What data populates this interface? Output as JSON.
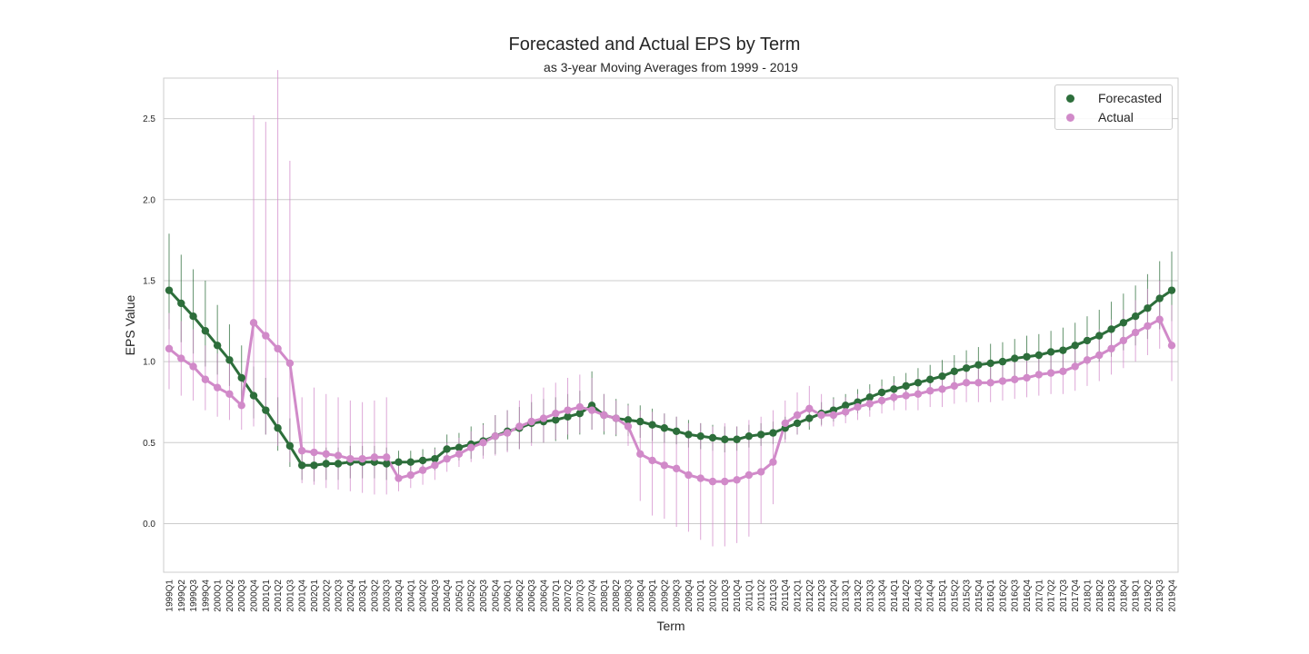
{
  "header": {
    "title": "Forecasted and Actual EPS by Term",
    "subtitle": "as 3-year Moving Averages from 1999 - 2019"
  },
  "legend": {
    "items": [
      {
        "label": "Forecasted",
        "color": "#2d6e3b"
      },
      {
        "label": "Actual",
        "color": "#d18ac9"
      }
    ],
    "placement": "top-right"
  },
  "chart_data": {
    "type": "line",
    "title": "Forecasted and Actual EPS by Term",
    "subtitle": "as 3-year Moving Averages from 1999 - 2019",
    "xlabel": "Term",
    "ylabel": "EPS Value",
    "ylim": [
      -0.3,
      2.75
    ],
    "yticks": [
      "0.0",
      "0.5",
      "1.0",
      "1.5",
      "2.0",
      "2.5"
    ],
    "grid": "horizontal",
    "categories": [
      "1999Q1",
      "1999Q2",
      "1999Q3",
      "1999Q4",
      "2000Q1",
      "2000Q2",
      "2000Q3",
      "2000Q4",
      "2001Q1",
      "2001Q2",
      "2001Q3",
      "2001Q4",
      "2002Q1",
      "2002Q2",
      "2002Q3",
      "2002Q4",
      "2003Q1",
      "2003Q2",
      "2003Q3",
      "2003Q4",
      "2004Q1",
      "2004Q2",
      "2004Q3",
      "2004Q4",
      "2005Q1",
      "2005Q2",
      "2005Q3",
      "2005Q4",
      "2006Q1",
      "2006Q2",
      "2006Q3",
      "2006Q4",
      "2007Q1",
      "2007Q2",
      "2007Q3",
      "2007Q4",
      "2008Q1",
      "2008Q2",
      "2008Q3",
      "2008Q4",
      "2009Q1",
      "2009Q2",
      "2009Q3",
      "2009Q4",
      "2010Q1",
      "2010Q2",
      "2010Q3",
      "2010Q4",
      "2011Q1",
      "2011Q2",
      "2011Q3",
      "2011Q4",
      "2012Q1",
      "2012Q2",
      "2012Q3",
      "2012Q4",
      "2013Q1",
      "2013Q2",
      "2013Q3",
      "2013Q4",
      "2014Q1",
      "2014Q2",
      "2014Q3",
      "2014Q4",
      "2015Q1",
      "2015Q2",
      "2015Q3",
      "2015Q4",
      "2016Q1",
      "2016Q2",
      "2016Q3",
      "2016Q4",
      "2017Q1",
      "2017Q2",
      "2017Q3",
      "2017Q4",
      "2018Q1",
      "2018Q2",
      "2018Q3",
      "2018Q4",
      "2019Q1",
      "2019Q2",
      "2019Q3",
      "2019Q4"
    ],
    "series": [
      {
        "name": "Forecasted",
        "color": "#2d6e3b",
        "values": [
          1.44,
          1.36,
          1.28,
          1.19,
          1.1,
          1.01,
          0.9,
          0.79,
          0.7,
          0.59,
          0.48,
          0.36,
          0.36,
          0.37,
          0.37,
          0.38,
          0.38,
          0.38,
          0.37,
          0.38,
          0.38,
          0.39,
          0.4,
          0.46,
          0.47,
          0.49,
          0.51,
          0.54,
          0.57,
          0.59,
          0.62,
          0.63,
          0.64,
          0.66,
          0.68,
          0.73,
          0.67,
          0.65,
          0.64,
          0.63,
          0.61,
          0.59,
          0.57,
          0.55,
          0.54,
          0.53,
          0.52,
          0.52,
          0.54,
          0.55,
          0.56,
          0.59,
          0.62,
          0.65,
          0.68,
          0.7,
          0.73,
          0.75,
          0.78,
          0.81,
          0.83,
          0.85,
          0.87,
          0.89,
          0.91,
          0.94,
          0.96,
          0.98,
          0.99,
          1.0,
          1.02,
          1.03,
          1.04,
          1.06,
          1.07,
          1.1,
          1.13,
          1.16,
          1.2,
          1.24,
          1.28,
          1.33,
          1.39,
          1.44
        ],
        "err_low": [
          1.2,
          1.12,
          1.05,
          0.97,
          0.92,
          0.85,
          0.75,
          0.65,
          0.55,
          0.45,
          0.35,
          0.27,
          0.26,
          0.27,
          0.27,
          0.28,
          0.28,
          0.28,
          0.27,
          0.3,
          0.31,
          0.32,
          0.33,
          0.38,
          0.39,
          0.4,
          0.42,
          0.43,
          0.45,
          0.46,
          0.5,
          0.5,
          0.51,
          0.52,
          0.55,
          0.58,
          0.55,
          0.54,
          0.54,
          0.53,
          0.51,
          0.5,
          0.49,
          0.47,
          0.46,
          0.45,
          0.44,
          0.45,
          0.47,
          0.48,
          0.49,
          0.52,
          0.55,
          0.58,
          0.61,
          0.63,
          0.66,
          0.68,
          0.7,
          0.73,
          0.75,
          0.77,
          0.78,
          0.8,
          0.82,
          0.84,
          0.85,
          0.87,
          0.88,
          0.89,
          0.9,
          0.91,
          0.92,
          0.93,
          0.94,
          0.96,
          0.98,
          1.0,
          1.03,
          1.07,
          1.1,
          1.14,
          1.2,
          1.25
        ],
        "err_high": [
          1.79,
          1.66,
          1.57,
          1.5,
          1.35,
          1.23,
          1.1,
          0.97,
          0.9,
          0.78,
          0.65,
          0.45,
          0.45,
          0.47,
          0.47,
          0.48,
          0.48,
          0.48,
          0.47,
          0.45,
          0.45,
          0.46,
          0.47,
          0.55,
          0.56,
          0.6,
          0.62,
          0.67,
          0.7,
          0.72,
          0.75,
          0.77,
          0.78,
          0.8,
          0.82,
          0.94,
          0.8,
          0.77,
          0.74,
          0.73,
          0.71,
          0.68,
          0.66,
          0.64,
          0.62,
          0.61,
          0.6,
          0.6,
          0.61,
          0.62,
          0.63,
          0.66,
          0.69,
          0.72,
          0.75,
          0.78,
          0.8,
          0.83,
          0.86,
          0.89,
          0.91,
          0.93,
          0.96,
          0.98,
          1.01,
          1.04,
          1.07,
          1.09,
          1.11,
          1.12,
          1.14,
          1.16,
          1.17,
          1.19,
          1.21,
          1.24,
          1.28,
          1.32,
          1.37,
          1.42,
          1.47,
          1.54,
          1.62,
          1.68
        ]
      },
      {
        "name": "Actual",
        "color": "#d18ac9",
        "values": [
          1.08,
          1.02,
          0.97,
          0.89,
          0.84,
          0.8,
          0.73,
          1.24,
          1.16,
          1.08,
          0.99,
          0.45,
          0.44,
          0.43,
          0.42,
          0.4,
          0.4,
          0.41,
          0.41,
          0.28,
          0.3,
          0.33,
          0.36,
          0.4,
          0.43,
          0.47,
          0.5,
          0.54,
          0.56,
          0.6,
          0.63,
          0.65,
          0.68,
          0.7,
          0.72,
          0.7,
          0.67,
          0.65,
          0.6,
          0.43,
          0.39,
          0.36,
          0.34,
          0.3,
          0.28,
          0.26,
          0.26,
          0.27,
          0.3,
          0.32,
          0.38,
          0.62,
          0.67,
          0.71,
          0.67,
          0.67,
          0.69,
          0.72,
          0.74,
          0.76,
          0.78,
          0.79,
          0.8,
          0.82,
          0.83,
          0.85,
          0.87,
          0.87,
          0.87,
          0.88,
          0.89,
          0.9,
          0.92,
          0.93,
          0.94,
          0.97,
          1.01,
          1.04,
          1.08,
          1.13,
          1.18,
          1.22,
          1.26,
          1.1
        ],
        "err_low": [
          0.83,
          0.79,
          0.76,
          0.7,
          0.66,
          0.64,
          0.58,
          0.6,
          0.55,
          0.48,
          0.38,
          0.25,
          0.24,
          0.22,
          0.21,
          0.2,
          0.19,
          0.18,
          0.18,
          0.2,
          0.22,
          0.24,
          0.27,
          0.32,
          0.35,
          0.38,
          0.4,
          0.42,
          0.44,
          0.46,
          0.48,
          0.5,
          0.52,
          0.55,
          0.56,
          0.58,
          0.57,
          0.55,
          0.48,
          0.14,
          0.05,
          0.03,
          -0.02,
          -0.05,
          -0.1,
          -0.14,
          -0.14,
          -0.12,
          -0.08,
          0.0,
          0.12,
          0.5,
          0.55,
          0.6,
          0.6,
          0.6,
          0.62,
          0.64,
          0.66,
          0.68,
          0.7,
          0.7,
          0.7,
          0.72,
          0.72,
          0.74,
          0.75,
          0.75,
          0.75,
          0.76,
          0.77,
          0.78,
          0.79,
          0.8,
          0.8,
          0.82,
          0.85,
          0.88,
          0.92,
          0.96,
          1.0,
          1.04,
          1.08,
          0.88
        ],
        "err_high": [
          1.3,
          1.25,
          1.2,
          1.1,
          1.05,
          1.0,
          0.9,
          2.52,
          2.48,
          2.8,
          2.24,
          0.78,
          0.84,
          0.8,
          0.78,
          0.76,
          0.75,
          0.76,
          0.78,
          0.37,
          0.38,
          0.42,
          0.46,
          0.5,
          0.53,
          0.57,
          0.61,
          0.67,
          0.7,
          0.76,
          0.8,
          0.84,
          0.87,
          0.9,
          0.92,
          0.9,
          0.8,
          0.76,
          0.73,
          0.7,
          0.69,
          0.68,
          0.66,
          0.62,
          0.62,
          0.6,
          0.62,
          0.6,
          0.64,
          0.66,
          0.7,
          0.76,
          0.81,
          0.85,
          0.8,
          0.77,
          0.78,
          0.8,
          0.83,
          0.85,
          0.87,
          0.88,
          0.9,
          0.92,
          0.94,
          0.96,
          0.99,
          1.0,
          1.0,
          1.01,
          1.02,
          1.04,
          1.05,
          1.07,
          1.09,
          1.12,
          1.16,
          1.2,
          1.26,
          1.32,
          1.38,
          1.45,
          1.5,
          1.35
        ]
      }
    ]
  }
}
